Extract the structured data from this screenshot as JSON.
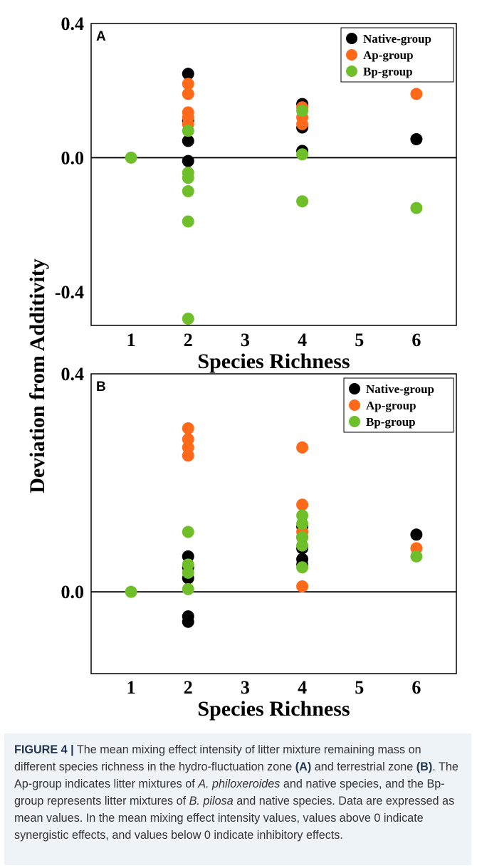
{
  "figure": {
    "y_axis_title": "Deviation from Additivity",
    "caption": {
      "label": "FIGURE 4 |",
      "part1": " The mean mixing effect intensity of litter mixture remaining mass on different species richness in the hydro-fluctuation zone ",
      "ref_a": "(A)",
      "part2": " and terrestrial zone ",
      "ref_b": "(B)",
      "part3": ". The Ap-group indicates litter mixtures of ",
      "species_1": "A. philoxeroides",
      "part4": " and native species, and the Bp-group represents litter mixtures of ",
      "species_2": "B. pilosa",
      "part5": " and native species. Data are expressed as mean values. In the mean mixing effect intensity values, values above 0 indicate synergistic effects, and values below 0 indicate inhibitory effects."
    }
  },
  "chart_data": [
    {
      "type": "scatter",
      "panel_label": "A",
      "xlabel": "Species Richness",
      "ylabel": "Deviation from Additivity",
      "xlim": [
        0.3,
        6.7
      ],
      "ylim": [
        -0.5,
        0.4
      ],
      "x_ticks": [
        "1",
        "2",
        "3",
        "4",
        "5",
        "6"
      ],
      "y_ticks": [
        "0.4",
        "0.0",
        "-0.4"
      ],
      "y_tick_values": [
        0.4,
        0.0,
        -0.4
      ],
      "reference_line": 0.0,
      "grid": false,
      "legend_position": "top-right",
      "series": [
        {
          "name": "Native-group",
          "color": "#000000",
          "x": [
            2,
            2,
            2,
            2,
            4,
            4,
            4,
            6
          ],
          "y": [
            0.25,
            0.11,
            0.05,
            -0.01,
            0.16,
            0.09,
            0.02,
            0.055
          ]
        },
        {
          "name": "Ap-group",
          "color": "#ff6a1a",
          "x": [
            2,
            2,
            2,
            2,
            2,
            4,
            4,
            4,
            6
          ],
          "y": [
            0.22,
            0.19,
            0.135,
            0.12,
            0.1,
            0.15,
            0.12,
            0.1,
            0.19
          ]
        },
        {
          "name": "Bp-group",
          "color": "#6fbf2a",
          "x": [
            1,
            2,
            2,
            2,
            2,
            2,
            2,
            4,
            4,
            4,
            6
          ],
          "y": [
            0.0,
            0.08,
            -0.045,
            -0.06,
            -0.1,
            -0.19,
            -0.48,
            0.14,
            0.01,
            -0.13,
            -0.15
          ]
        }
      ]
    },
    {
      "type": "scatter",
      "panel_label": "B",
      "xlabel": "Species Richness",
      "ylabel": "Deviation from Additivity",
      "xlim": [
        0.3,
        6.7
      ],
      "ylim": [
        -0.15,
        0.4
      ],
      "x_ticks": [
        "1",
        "2",
        "3",
        "4",
        "5",
        "6"
      ],
      "y_ticks": [
        "0.4",
        "0.0"
      ],
      "y_tick_values": [
        0.4,
        0.0
      ],
      "reference_line": 0.0,
      "grid": false,
      "legend_position": "top-right",
      "series": [
        {
          "name": "Native-group",
          "color": "#000000",
          "x": [
            2,
            2,
            2,
            2,
            2,
            4,
            4,
            4,
            4,
            4,
            6
          ],
          "y": [
            0.065,
            0.045,
            0.025,
            -0.045,
            -0.055,
            0.12,
            0.1,
            0.08,
            0.06,
            0.05,
            0.105
          ]
        },
        {
          "name": "Ap-group",
          "color": "#ff6a1a",
          "x": [
            2,
            2,
            2,
            2,
            4,
            4,
            4,
            4,
            6
          ],
          "y": [
            0.3,
            0.28,
            0.265,
            0.25,
            0.265,
            0.16,
            0.11,
            0.01,
            0.08
          ]
        },
        {
          "name": "Bp-group",
          "color": "#6fbf2a",
          "x": [
            1,
            2,
            2,
            2,
            2,
            4,
            4,
            4,
            4,
            4,
            6
          ],
          "y": [
            0.0,
            0.11,
            0.05,
            0.035,
            0.005,
            0.14,
            0.125,
            0.1,
            0.085,
            0.045,
            0.065
          ]
        }
      ]
    }
  ]
}
